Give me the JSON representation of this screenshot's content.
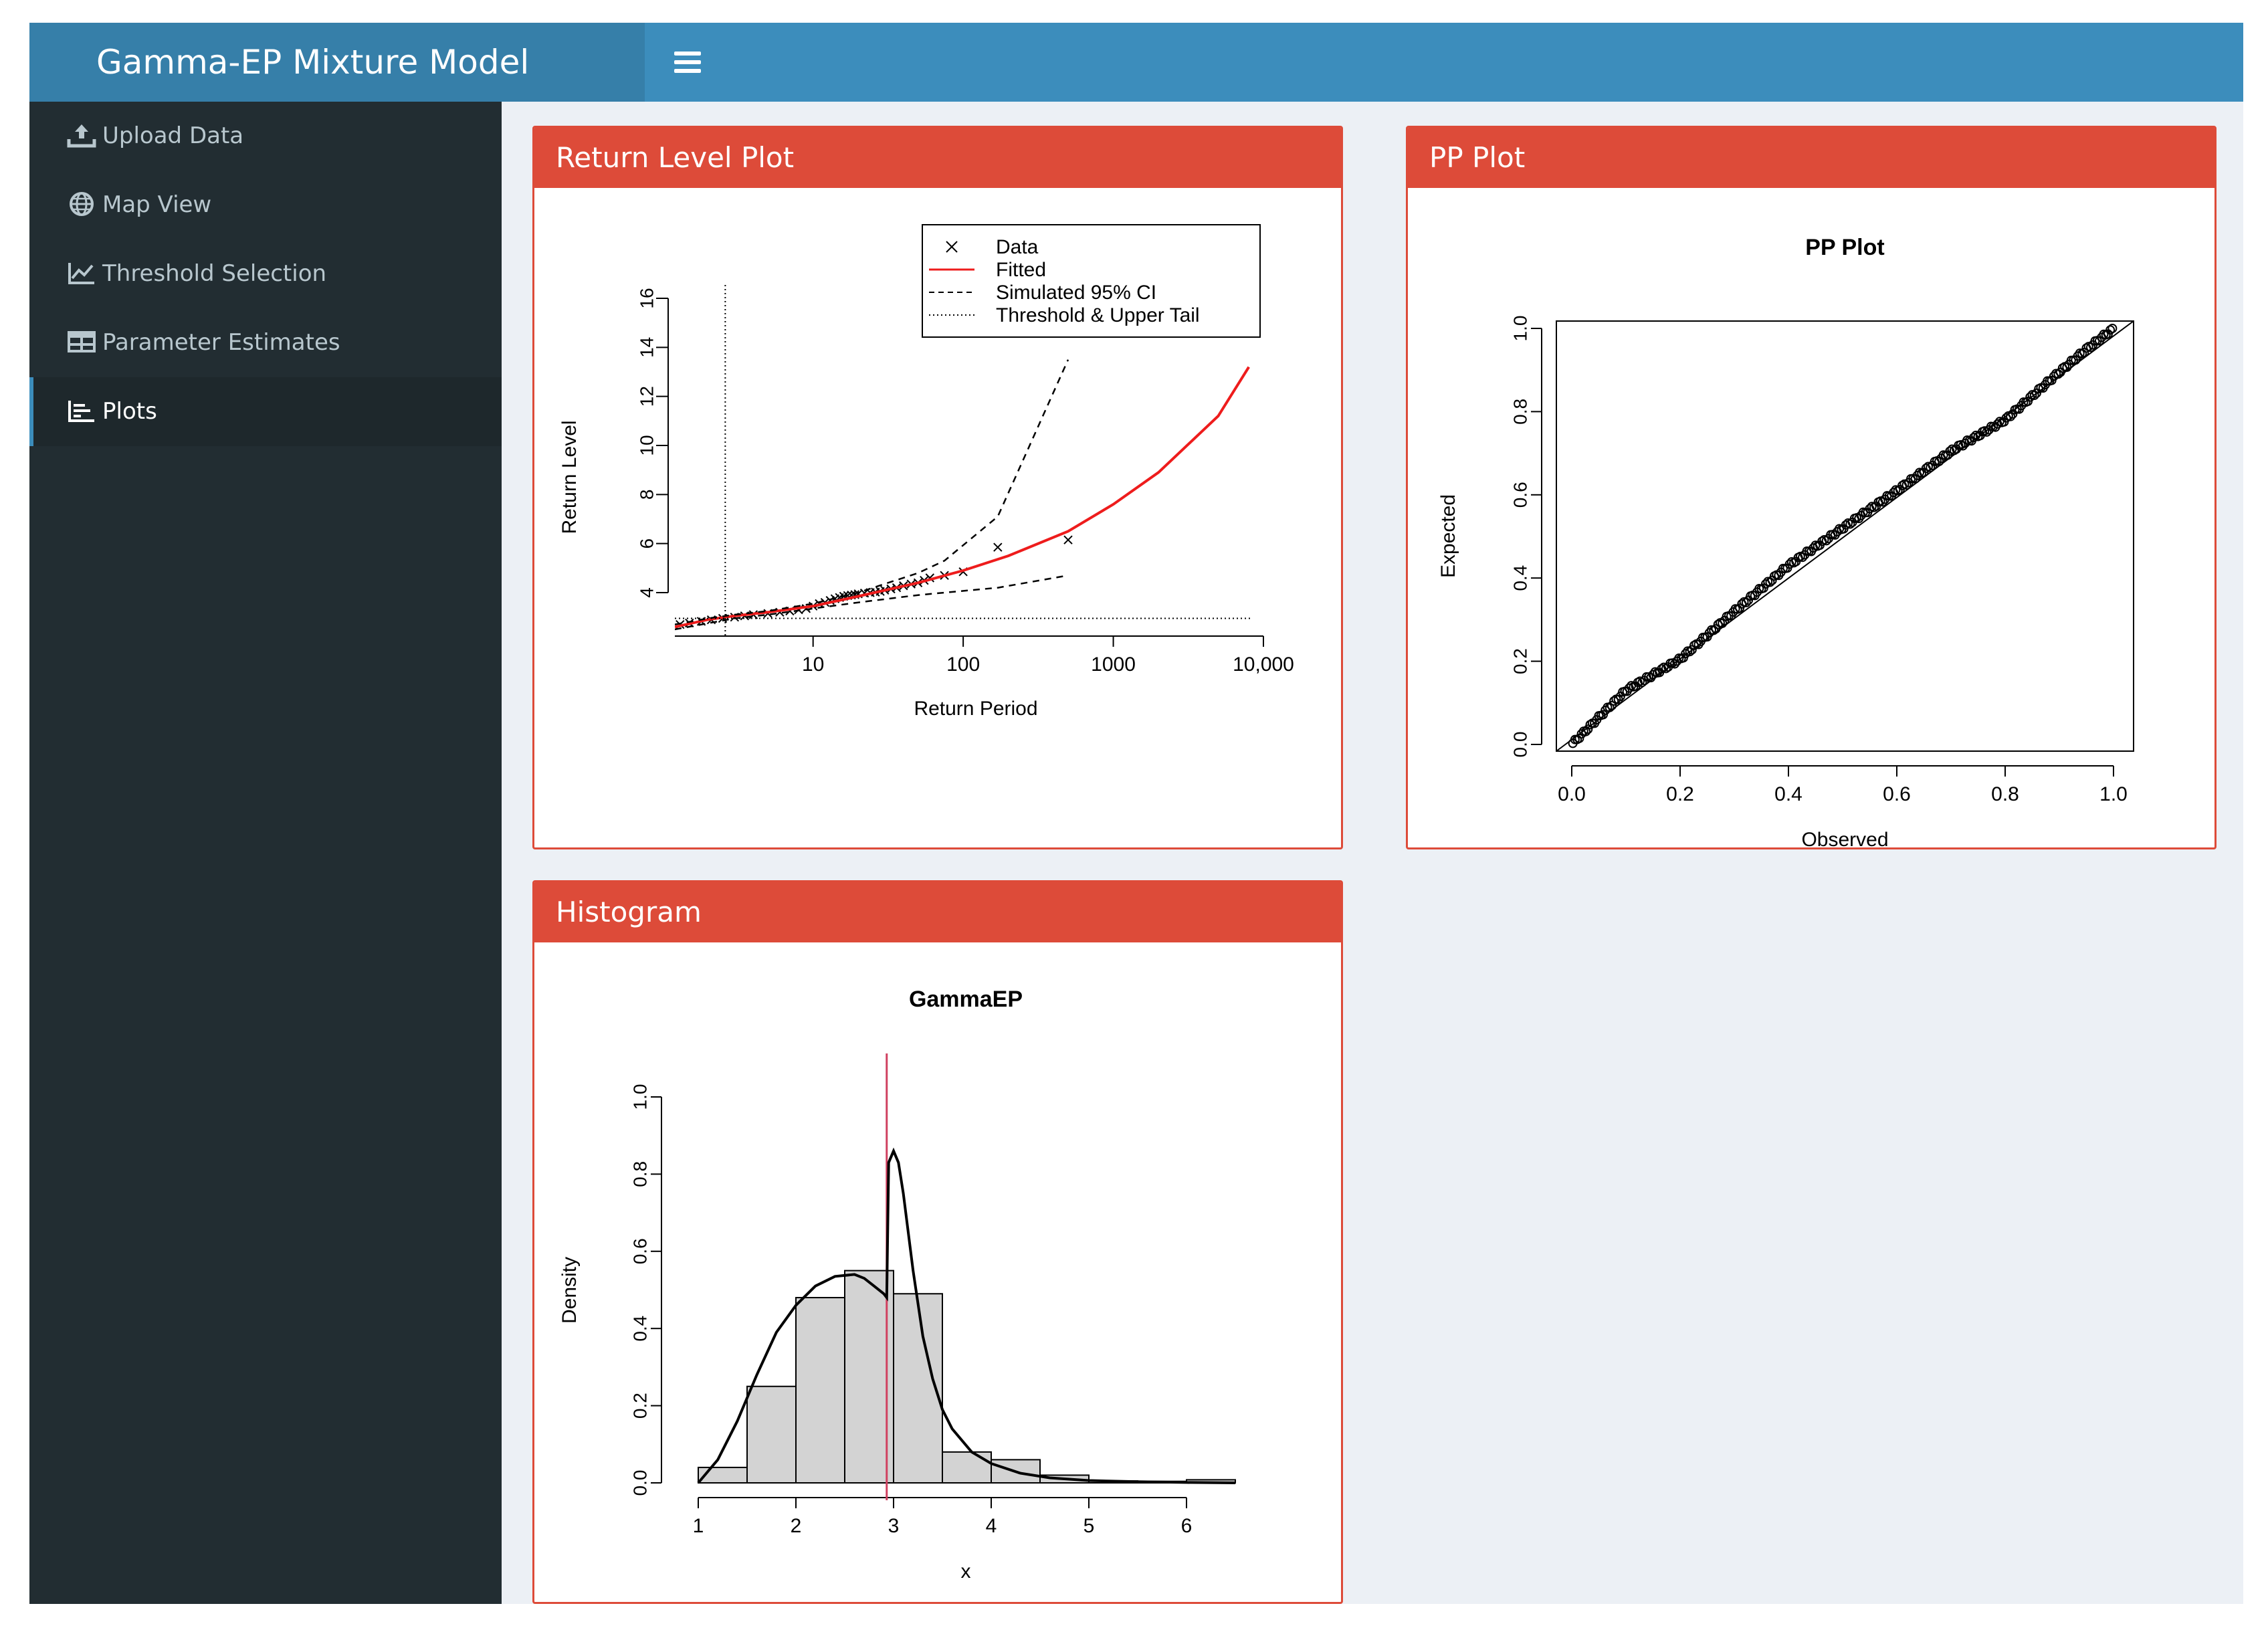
{
  "header": {
    "title": "Gamma-EP Mixture Model"
  },
  "sidebar": {
    "items": [
      {
        "label": "Upload Data",
        "icon": "upload-icon"
      },
      {
        "label": "Map View",
        "icon": "globe-icon"
      },
      {
        "label": "Threshold Selection",
        "icon": "line-chart-icon"
      },
      {
        "label": "Parameter Estimates",
        "icon": "table-icon"
      },
      {
        "label": "Plots",
        "icon": "bar-chart-icon"
      }
    ]
  },
  "boxes": {
    "return_level": "Return Level Plot",
    "pp": "PP Plot",
    "histogram": "Histogram"
  },
  "chart_data": [
    {
      "type": "line",
      "title": "",
      "xlabel": "Return Period",
      "ylabel": "Return Level",
      "xscale": "log",
      "xlim": [
        1.2,
        10000
      ],
      "ylim": [
        2.5,
        16
      ],
      "xticks": [
        10,
        100,
        1000,
        10000
      ],
      "xtick_labels": [
        "10",
        "100",
        "1000",
        "10,000"
      ],
      "yticks": [
        4,
        6,
        8,
        10,
        12,
        14,
        16
      ],
      "ytick_labels": [
        "4",
        "6",
        "8",
        "10",
        "12",
        "14",
        "16"
      ],
      "threshold_level": 2.95,
      "threshold_period": 2.6,
      "legend": {
        "placement": "top-right",
        "entries": [
          "Data",
          "Fitted",
          "Simulated 95% CI",
          "Threshold & Upper Tail"
        ]
      },
      "series": [
        {
          "name": "Data",
          "style": "points-x",
          "x": [
            1.3,
            1.5,
            1.8,
            2.1,
            2.5,
            3,
            3.5,
            4,
            5,
            6,
            7,
            8,
            9,
            10,
            11,
            12,
            13,
            14,
            15,
            16,
            17,
            18,
            19,
            20,
            22,
            24,
            26,
            28,
            30,
            33,
            36,
            40,
            45,
            50,
            55,
            60,
            75,
            100,
            170,
            500
          ],
          "y": [
            2.7,
            2.76,
            2.83,
            2.89,
            2.95,
            3.0,
            3.05,
            3.1,
            3.15,
            3.2,
            3.25,
            3.3,
            3.35,
            3.45,
            3.55,
            3.6,
            3.68,
            3.75,
            3.8,
            3.85,
            3.88,
            3.9,
            3.92,
            3.95,
            3.98,
            4.0,
            4.02,
            4.05,
            4.1,
            4.15,
            4.2,
            4.28,
            4.35,
            4.4,
            4.5,
            4.6,
            4.7,
            4.85,
            5.85,
            6.15
          ]
        },
        {
          "name": "Fitted",
          "style": "solid",
          "color": "#ee1c1c",
          "x": [
            1.2,
            2,
            3,
            5,
            10,
            20,
            50,
            100,
            200,
            500,
            1000,
            2000,
            5000,
            8000
          ],
          "y": [
            2.6,
            2.9,
            3.05,
            3.2,
            3.45,
            3.85,
            4.4,
            4.9,
            5.5,
            6.5,
            7.6,
            8.9,
            11.2,
            13.2
          ]
        },
        {
          "name": "Simulated 95% CI upper",
          "style": "dashed",
          "x": [
            1.2,
            2,
            3,
            5,
            10,
            20,
            50,
            75,
            170,
            500
          ],
          "y": [
            2.7,
            2.95,
            3.1,
            3.25,
            3.55,
            4.0,
            4.8,
            5.3,
            7.1,
            13.5
          ]
        },
        {
          "name": "Simulated 95% CI lower",
          "style": "dashed",
          "x": [
            1.2,
            2,
            3,
            5,
            10,
            20,
            50,
            75,
            170,
            500
          ],
          "y": [
            2.5,
            2.75,
            2.95,
            3.1,
            3.35,
            3.6,
            3.9,
            4.0,
            4.2,
            4.7
          ]
        }
      ]
    },
    {
      "type": "scatter",
      "title": "PP Plot",
      "xlabel": "Observed",
      "ylabel": "Expected",
      "xlim": [
        0,
        1
      ],
      "ylim": [
        0,
        1
      ],
      "xticks": [
        0.0,
        0.2,
        0.4,
        0.6,
        0.8,
        1.0
      ],
      "xtick_labels": [
        "0.0",
        "0.2",
        "0.4",
        "0.6",
        "0.8",
        "1.0"
      ],
      "yticks": [
        0.0,
        0.2,
        0.4,
        0.6,
        0.8,
        1.0
      ],
      "ytick_labels": [
        "0.0",
        "0.2",
        "0.4",
        "0.6",
        "0.8",
        "1.0"
      ],
      "reference_line": "y = x",
      "points": {
        "n": 250,
        "deviation": [
          [
            0.0,
            0.0
          ],
          [
            0.1,
            0.03
          ],
          [
            0.2,
            0.005
          ],
          [
            0.3,
            0.02
          ],
          [
            0.4,
            0.03
          ],
          [
            0.5,
            0.02
          ],
          [
            0.6,
            0.01
          ],
          [
            0.7,
            0.005
          ],
          [
            0.8,
            -0.02
          ],
          [
            0.9,
            -0.005
          ],
          [
            0.95,
            0.0
          ],
          [
            1.0,
            0.0
          ]
        ]
      }
    },
    {
      "type": "bar",
      "title": "GammaEP",
      "xlabel": "x",
      "ylabel": "Density",
      "xlim": [
        1,
        6.5
      ],
      "ylim": [
        0,
        1.0
      ],
      "xticks": [
        1,
        2,
        3,
        4,
        5,
        6
      ],
      "xtick_labels": [
        "1",
        "2",
        "3",
        "4",
        "5",
        "6"
      ],
      "yticks": [
        0.0,
        0.2,
        0.4,
        0.6,
        0.8,
        1.0
      ],
      "ytick_labels": [
        "0.0",
        "0.2",
        "0.4",
        "0.6",
        "0.8",
        "1.0"
      ],
      "bins": [
        [
          1.0,
          1.5
        ],
        [
          1.5,
          2.0
        ],
        [
          2.0,
          2.5
        ],
        [
          2.5,
          3.0
        ],
        [
          3.0,
          3.5
        ],
        [
          3.5,
          4.0
        ],
        [
          4.0,
          4.5
        ],
        [
          4.5,
          5.0
        ],
        [
          5.0,
          5.5
        ],
        [
          5.5,
          6.0
        ],
        [
          6.0,
          6.5
        ]
      ],
      "values": [
        0.04,
        0.25,
        0.48,
        0.55,
        0.49,
        0.08,
        0.06,
        0.02,
        0.005,
        0.004,
        0.008
      ],
      "threshold": 2.93,
      "threshold_color": "#d04060",
      "density_curve": {
        "x": [
          1.0,
          1.2,
          1.4,
          1.6,
          1.8,
          2.0,
          2.2,
          2.4,
          2.6,
          2.7,
          2.8,
          2.9,
          2.93,
          2.95,
          3.0,
          3.05,
          3.1,
          3.2,
          3.3,
          3.4,
          3.5,
          3.6,
          3.8,
          4.0,
          4.3,
          4.6,
          5.0,
          5.5,
          6.0,
          6.5
        ],
        "y": [
          0.0,
          0.06,
          0.16,
          0.28,
          0.39,
          0.46,
          0.51,
          0.535,
          0.54,
          0.53,
          0.51,
          0.49,
          0.48,
          0.83,
          0.86,
          0.83,
          0.75,
          0.55,
          0.38,
          0.27,
          0.19,
          0.14,
          0.08,
          0.05,
          0.025,
          0.013,
          0.006,
          0.003,
          0.001,
          0.0
        ]
      }
    }
  ]
}
